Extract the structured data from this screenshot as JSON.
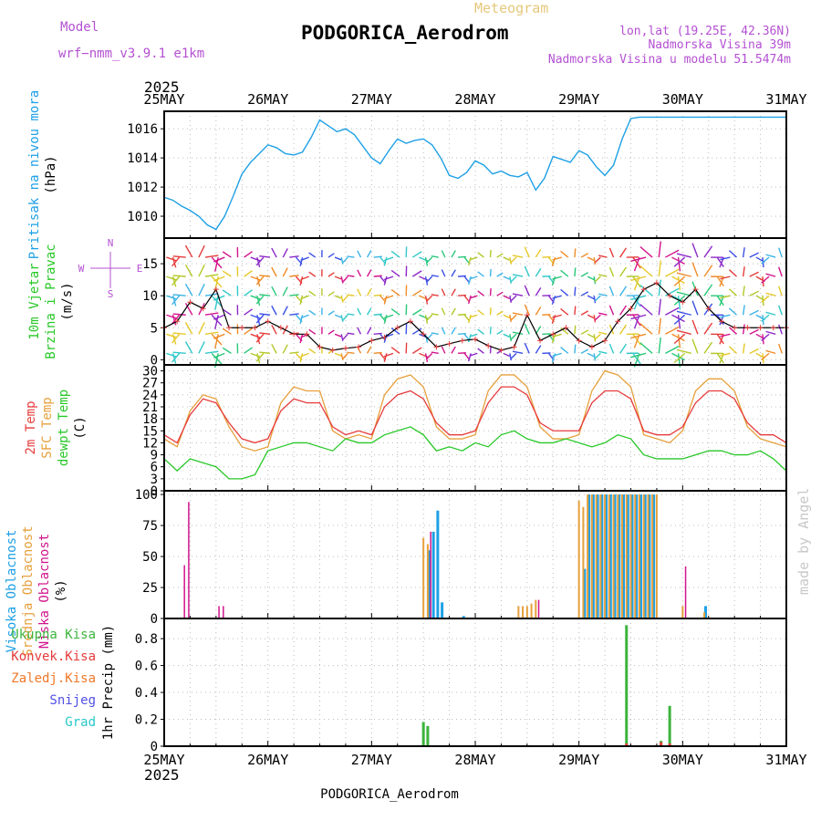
{
  "header": {
    "model_label": "Model",
    "model_name": "wrf−nmm_v3.9.1 e1km",
    "meteogram": "Meteogram",
    "station": "PODGORICA_Aerodrom",
    "lonlat": "lon,lat (19.25E, 42.36N)",
    "elevation": "Nadmorska Visina 39m",
    "model_elevation": "Nadmorska Visina u modelu 51.5474m",
    "year": "2025",
    "footer_station": "PODGORICA_Aerodrom",
    "credit": "made by Angel"
  },
  "colors": {
    "pressure": "#1ea0e6",
    "temp2m": "#e63c3c",
    "sfc_temp": "#e6a03c",
    "dewpt": "#28c828",
    "high_cloud": "#1ea0e6",
    "mid_cloud": "#e6a03c",
    "low_cloud": "#d2148c",
    "total_precip": "#3cb43c",
    "conv_precip": "#e63c3c",
    "ice_precip": "#f07828",
    "snow": "#5050e6",
    "hail": "#28c8c8"
  },
  "chart_data": [
    {
      "type": "line",
      "panel": "pressure",
      "ylabel_lines": [
        "Pritisak na nivou mora",
        "(hPa)"
      ],
      "x_ticks": [
        "25MAY",
        "26MAY",
        "27MAY",
        "28MAY",
        "29MAY",
        "30MAY",
        "31MAY"
      ],
      "x_range": [
        0,
        144
      ],
      "ylim": [
        1008.5,
        1017.2
      ],
      "yticks": [
        1010,
        1012,
        1014,
        1016
      ],
      "grid": true,
      "series": [
        {
          "x": [
            0,
            2,
            4,
            6,
            8,
            10,
            12,
            14,
            16,
            18,
            20,
            22,
            24,
            26,
            28,
            30,
            32,
            34,
            36,
            38,
            40,
            42,
            44,
            46,
            48,
            50,
            52,
            54,
            56,
            58,
            60,
            62,
            64,
            66,
            68,
            70,
            72,
            74,
            76,
            78,
            80,
            82,
            84,
            86,
            88,
            90,
            92,
            94,
            96,
            98,
            100,
            102,
            104,
            106,
            108,
            110,
            112,
            114,
            116,
            118,
            120,
            122,
            124,
            126,
            128,
            130,
            132,
            134,
            136,
            138,
            140,
            142,
            144
          ],
          "values": [
            1011.3,
            1011.1,
            1010.7,
            1010.4,
            1010.0,
            1009.4,
            1009.1,
            1010.0,
            1011.4,
            1012.9,
            1013.7,
            1014.3,
            1014.9,
            1014.7,
            1014.3,
            1014.2,
            1014.4,
            1015.4,
            1016.6,
            1016.2,
            1015.8,
            1016.0,
            1015.6,
            1014.8,
            1014.0,
            1013.6,
            1014.5,
            1015.3,
            1015.0,
            1015.2,
            1015.3,
            1014.9,
            1014.0,
            1012.8,
            1012.6,
            1013.0,
            1013.8,
            1013.5,
            1012.9,
            1013.1,
            1012.8,
            1012.7,
            1013.0,
            1011.8,
            1012.6,
            1014.1,
            1013.9,
            1013.7,
            1014.5,
            1014.2,
            1013.4,
            1012.8,
            1013.5,
            1015.3,
            1016.7,
            1016.8,
            1016.8,
            1016.8,
            1016.8,
            1016.8,
            1016.8,
            1016.8,
            1016.8,
            1016.8,
            1016.8,
            1016.8,
            1016.8,
            1016.8,
            1016.8,
            1016.8,
            1016.8,
            1016.8,
            1016.8
          ]
        }
      ]
    },
    {
      "type": "line",
      "panel": "wind",
      "ylabel_lines": [
        "10m Vjetar",
        "Brzina i Pravac",
        "(m/s)"
      ],
      "compass": [
        "N",
        "W",
        "E",
        "S"
      ],
      "ylim": [
        -0.8,
        19
      ],
      "yticks": [
        0,
        5,
        10,
        15
      ],
      "grid": true,
      "series": [
        {
          "name": "wind speed",
          "x": [
            0,
            3,
            6,
            9,
            12,
            15,
            18,
            21,
            24,
            27,
            30,
            33,
            36,
            39,
            42,
            45,
            48,
            51,
            54,
            57,
            60,
            63,
            66,
            69,
            72,
            75,
            78,
            81,
            84,
            87,
            90,
            93,
            96,
            99,
            102,
            105,
            108,
            111,
            114,
            117,
            120,
            123,
            126,
            129,
            132,
            135,
            138,
            141,
            144
          ],
          "values": [
            5,
            6,
            9,
            8,
            11,
            5,
            5,
            5,
            6,
            5,
            4,
            4,
            2,
            1.5,
            1.8,
            2,
            3,
            3.5,
            5,
            6,
            4,
            2,
            2.5,
            3,
            3.2,
            2.2,
            1.5,
            2,
            7,
            3,
            4,
            5,
            3,
            2,
            3,
            6,
            8,
            11,
            12,
            10,
            9,
            11,
            8,
            6,
            5,
            5,
            5,
            5,
            5
          ]
        }
      ]
    },
    {
      "type": "line",
      "panel": "temperature",
      "ylabel_lines": [
        "2m Temp",
        "SFC Temp",
        "dewpt Temp",
        "(C)"
      ],
      "ylim": [
        0,
        31.5
      ],
      "yticks": [
        0,
        3,
        6,
        9,
        12,
        15,
        18,
        21,
        24,
        27,
        30
      ],
      "grid": true,
      "series": [
        {
          "name": "2m Temp",
          "x": [
            0,
            3,
            6,
            9,
            12,
            15,
            18,
            21,
            24,
            27,
            30,
            33,
            36,
            39,
            42,
            45,
            48,
            51,
            54,
            57,
            60,
            63,
            66,
            69,
            72,
            75,
            78,
            81,
            84,
            87,
            90,
            93,
            96,
            99,
            102,
            105,
            108,
            111,
            114,
            117,
            120,
            123,
            126,
            129,
            132,
            135,
            138,
            141,
            144
          ],
          "values": [
            14,
            12,
            19,
            23,
            22,
            17,
            13,
            12,
            13,
            20,
            23,
            22,
            22,
            16,
            14,
            15,
            14,
            21,
            24,
            25,
            23,
            17,
            14,
            14,
            15,
            22,
            26,
            26,
            24,
            17,
            15,
            15,
            15,
            22,
            25,
            25,
            23,
            15,
            14,
            14,
            16,
            22,
            25,
            25,
            23,
            17,
            14,
            14,
            12
          ]
        },
        {
          "name": "SFC Temp",
          "x": [
            0,
            3,
            6,
            9,
            12,
            15,
            18,
            21,
            24,
            27,
            30,
            33,
            36,
            39,
            42,
            45,
            48,
            51,
            54,
            57,
            60,
            63,
            66,
            69,
            72,
            75,
            78,
            81,
            84,
            87,
            90,
            93,
            96,
            99,
            102,
            105,
            108,
            111,
            114,
            117,
            120,
            123,
            126,
            129,
            132,
            135,
            138,
            141,
            144
          ],
          "values": [
            13,
            11,
            20,
            24,
            23,
            16,
            11,
            10,
            11,
            22,
            26,
            25,
            25,
            15,
            13,
            14,
            13,
            24,
            28,
            29,
            26,
            16,
            13,
            13,
            14,
            25,
            29,
            29,
            26,
            16,
            13,
            13,
            14,
            25,
            30,
            29,
            26,
            14,
            13,
            12,
            15,
            25,
            28,
            28,
            25,
            16,
            13,
            12,
            11
          ]
        },
        {
          "name": "dewpt Temp",
          "x": [
            0,
            3,
            6,
            9,
            12,
            15,
            18,
            21,
            24,
            27,
            30,
            33,
            36,
            39,
            42,
            45,
            48,
            51,
            54,
            57,
            60,
            63,
            66,
            69,
            72,
            75,
            78,
            81,
            84,
            87,
            90,
            93,
            96,
            99,
            102,
            105,
            108,
            111,
            114,
            117,
            120,
            123,
            126,
            129,
            132,
            135,
            138,
            141,
            144
          ],
          "values": [
            8,
            5,
            8,
            7,
            6,
            3,
            3,
            4,
            10,
            11,
            12,
            12,
            11,
            10,
            13,
            12,
            12,
            14,
            15,
            16,
            14,
            10,
            11,
            10,
            12,
            11,
            14,
            15,
            13,
            12,
            12,
            13,
            12,
            11,
            12,
            14,
            13,
            9,
            8,
            8,
            8,
            9,
            10,
            10,
            9,
            9,
            10,
            8,
            5
          ]
        }
      ]
    },
    {
      "type": "bar",
      "panel": "cloud",
      "ylabel_lines": [
        "Visoka Oblacnost",
        "Srednja Oblacnost",
        "Niska Oblacnost",
        "(%)"
      ],
      "ylim": [
        0,
        103
      ],
      "yticks": [
        0,
        25,
        50,
        75,
        100
      ],
      "grid": true,
      "series": [
        {
          "name": "Visoka Oblacnost",
          "x": [
            61,
            62,
            63,
            64,
            69,
            97,
            98,
            99,
            100,
            101,
            102,
            103,
            104,
            105,
            106,
            107,
            108,
            109,
            110,
            111,
            112,
            113,
            125
          ],
          "values": [
            55,
            70,
            87,
            13,
            2,
            40,
            100,
            100,
            100,
            100,
            100,
            100,
            100,
            100,
            100,
            100,
            100,
            100,
            100,
            100,
            100,
            100,
            10
          ]
        },
        {
          "name": "Srednja Oblacnost",
          "x": [
            60,
            61,
            82,
            83,
            84,
            85,
            86,
            96,
            97,
            98,
            99,
            100,
            101,
            102,
            103,
            104,
            105,
            106,
            107,
            108,
            109,
            110,
            111,
            112,
            113,
            114,
            120,
            125
          ],
          "values": [
            65,
            60,
            10,
            10,
            10,
            12,
            15,
            95,
            90,
            100,
            100,
            100,
            100,
            100,
            100,
            100,
            100,
            100,
            100,
            100,
            100,
            100,
            100,
            100,
            100,
            100,
            10,
            5
          ]
        },
        {
          "name": "Niska Oblacnost",
          "x": [
            5,
            6,
            13,
            14,
            62,
            87,
            121
          ],
          "values": [
            43,
            94,
            10,
            10,
            70,
            15,
            42
          ]
        }
      ]
    },
    {
      "type": "bar",
      "panel": "precipitation",
      "ylabel_lines": [
        "Ukupna Kisa",
        "Konvek.Kisa",
        "Zaledj.Kisa",
        "Snijeg",
        "Grad",
        "1hr Precip (mm)"
      ],
      "ylim": [
        0,
        0.95
      ],
      "yticks": [
        0,
        0.2,
        0.4,
        0.6,
        0.8
      ],
      "grid": true,
      "series": [
        {
          "name": "Ukupna Kisa",
          "x": [
            60,
            61,
            107,
            115,
            117
          ],
          "values": [
            0.18,
            0.15,
            0.9,
            0.04,
            0.3
          ]
        },
        {
          "name": "Konvek.Kisa",
          "x": [
            107,
            115,
            117
          ],
          "values": [
            0.02,
            0.03,
            0.02
          ]
        }
      ]
    }
  ]
}
